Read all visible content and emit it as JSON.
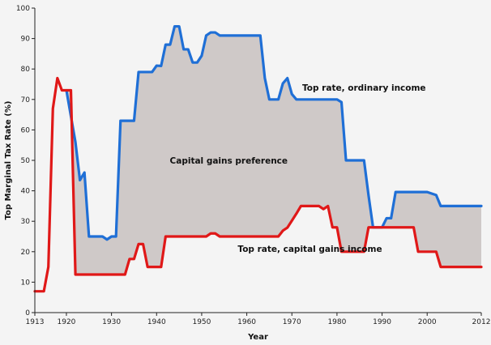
{
  "chart_data": {
    "type": "area",
    "title": "",
    "xlabel": "Year",
    "ylabel": "Top Marginal Tax Rate (%)",
    "xlim": [
      1913,
      2012
    ],
    "ylim": [
      0,
      100
    ],
    "x_ticks": [
      1913,
      1920,
      1930,
      1940,
      1950,
      1960,
      1970,
      1980,
      1990,
      2000,
      2012
    ],
    "y_ticks": [
      0,
      10,
      20,
      30,
      40,
      50,
      60,
      70,
      80,
      90,
      100
    ],
    "grid": false,
    "series": [
      {
        "name": "Top rate, ordinary income",
        "color": "#1f6fd6",
        "points": [
          [
            1920,
            73
          ],
          [
            1922,
            56
          ],
          [
            1923,
            43.5
          ],
          [
            1924,
            46
          ],
          [
            1925,
            25
          ],
          [
            1928,
            25
          ],
          [
            1929,
            24
          ],
          [
            1930,
            25
          ],
          [
            1931,
            25
          ],
          [
            1932,
            63
          ],
          [
            1935,
            63
          ],
          [
            1936,
            79
          ],
          [
            1939,
            79
          ],
          [
            1940,
            81.1
          ],
          [
            1941,
            81
          ],
          [
            1942,
            88
          ],
          [
            1943,
            88
          ],
          [
            1944,
            94
          ],
          [
            1945,
            94
          ],
          [
            1946,
            86.45
          ],
          [
            1947,
            86.45
          ],
          [
            1948,
            82.13
          ],
          [
            1949,
            82.13
          ],
          [
            1950,
            84.36
          ],
          [
            1951,
            91
          ],
          [
            1952,
            92
          ],
          [
            1953,
            92
          ],
          [
            1954,
            91
          ],
          [
            1963,
            91
          ],
          [
            1964,
            77
          ],
          [
            1965,
            70
          ],
          [
            1967,
            70
          ],
          [
            1968,
            75.25
          ],
          [
            1969,
            77
          ],
          [
            1970,
            71.75
          ],
          [
            1971,
            70
          ],
          [
            1980,
            70
          ],
          [
            1981,
            69.125
          ],
          [
            1982,
            50
          ],
          [
            1986,
            50
          ],
          [
            1987,
            38.5
          ],
          [
            1988,
            28
          ],
          [
            1990,
            28
          ],
          [
            1991,
            31
          ],
          [
            1992,
            31
          ],
          [
            1993,
            39.6
          ],
          [
            2000,
            39.6
          ],
          [
            2001,
            39.1
          ],
          [
            2002,
            38.6
          ],
          [
            2003,
            35
          ],
          [
            2012,
            35
          ]
        ]
      },
      {
        "name": "Top rate, capital gains income",
        "color": "#e01818",
        "points": [
          [
            1913,
            7
          ],
          [
            1915,
            7
          ],
          [
            1916,
            15
          ],
          [
            1917,
            67
          ],
          [
            1918,
            77
          ],
          [
            1919,
            73
          ],
          [
            1920,
            73
          ],
          [
            1921,
            73
          ],
          [
            1922,
            12.5
          ],
          [
            1933,
            12.5
          ],
          [
            1934,
            17.6
          ],
          [
            1935,
            17.6
          ],
          [
            1936,
            22.5
          ],
          [
            1937,
            22.5
          ],
          [
            1938,
            15
          ],
          [
            1941,
            15
          ],
          [
            1942,
            25
          ],
          [
            1951,
            25
          ],
          [
            1952,
            26
          ],
          [
            1953,
            26
          ],
          [
            1954,
            25
          ],
          [
            1967,
            25
          ],
          [
            1968,
            26.9
          ],
          [
            1969,
            27.9
          ],
          [
            1970,
            30.2
          ],
          [
            1971,
            32.5
          ],
          [
            1972,
            35
          ],
          [
            1976,
            35
          ],
          [
            1977,
            34
          ],
          [
            1978,
            35
          ],
          [
            1979,
            28
          ],
          [
            1980,
            28
          ],
          [
            1981,
            20
          ],
          [
            1986,
            20
          ],
          [
            1987,
            28
          ],
          [
            1997,
            28
          ],
          [
            1998,
            20
          ],
          [
            2002,
            20
          ],
          [
            2003,
            15
          ],
          [
            2012,
            15
          ]
        ]
      }
    ],
    "shaded_region": {
      "name": "Capital gains preference",
      "between": [
        "Top rate, ordinary income",
        "Top rate, capital gains income"
      ],
      "color": "#cfc9c8"
    },
    "annotations": [
      {
        "text": "Top rate, ordinary income",
        "x": 1986,
        "y": 74
      },
      {
        "text": "Capital gains preference",
        "x": 1956,
        "y": 50
      },
      {
        "text": "Top rate, capital gains income",
        "x": 1974,
        "y": 21
      }
    ]
  }
}
